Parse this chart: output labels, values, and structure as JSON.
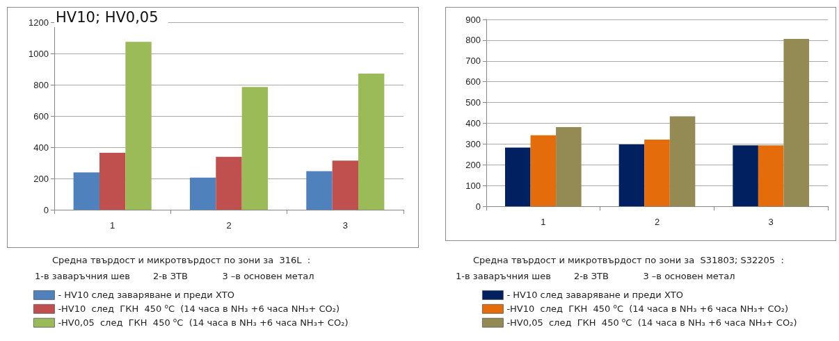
{
  "chart_data": [
    {
      "type": "bar",
      "title": "HV10; HV0,05",
      "categories": [
        "1",
        "2",
        "3"
      ],
      "series": [
        {
          "name": "- HV10 след заваряване и преди ХТО",
          "color": "#4f81bd",
          "values": [
            239,
            206,
            247
          ]
        },
        {
          "name": "-HV10  след  ГКН  450 $^{o}$C  (14 часа в NH₃ +6 часа NH₃+ CO₂)",
          "color": "#c0504d",
          "values": [
            365,
            339,
            315
          ]
        },
        {
          "name": "-HV0,05  след  ГКН  450 $^{o}$C  (14 часа в NH₃ +6 часа NH₃+ CO₂)",
          "color": "#9bbb59",
          "values": [
            1074,
            786,
            871
          ]
        }
      ],
      "ylim": [
        0,
        1200
      ],
      "yticks": [
        0,
        200,
        400,
        600,
        800,
        1000,
        1200
      ],
      "grid": "y",
      "legend": "bottom",
      "annotations": [
        "Средна твърдост и микротвърдост по зони за  316L  :",
        "1-в заваръчния шев        2-в ЗТВ            3 –в основен метал"
      ]
    },
    {
      "type": "bar",
      "categories": [
        "1",
        "2",
        "3"
      ],
      "series": [
        {
          "name": "- HV10 след заваряване и преди ХТО",
          "color": "#002060",
          "values": [
            283,
            298,
            294
          ]
        },
        {
          "name": "-HV10  след  ГКН  450 $^{o}$C  (14 часа в NH₃ +6 часа NH₃+ CO₂)",
          "color": "#e46c0a",
          "values": [
            342,
            321,
            294
          ]
        },
        {
          "name": "-HV0,05  след  ГКН  450 $^{o}$C  (14 часа в NH₃ +6 часа NH₃+ CO₂)",
          "color": "#948a54",
          "values": [
            381,
            433,
            806
          ]
        }
      ],
      "ylim": [
        0,
        900
      ],
      "yticks": [
        0,
        100,
        200,
        300,
        400,
        500,
        600,
        700,
        800,
        900
      ],
      "grid": "y",
      "legend": "bottom",
      "annotations": [
        "Средна твърдост и микротвърдост по зони за  S31803; S32205  :",
        "1-в заваръчния шев        2-в ЗТВ            3 –в основен метал"
      ]
    }
  ]
}
